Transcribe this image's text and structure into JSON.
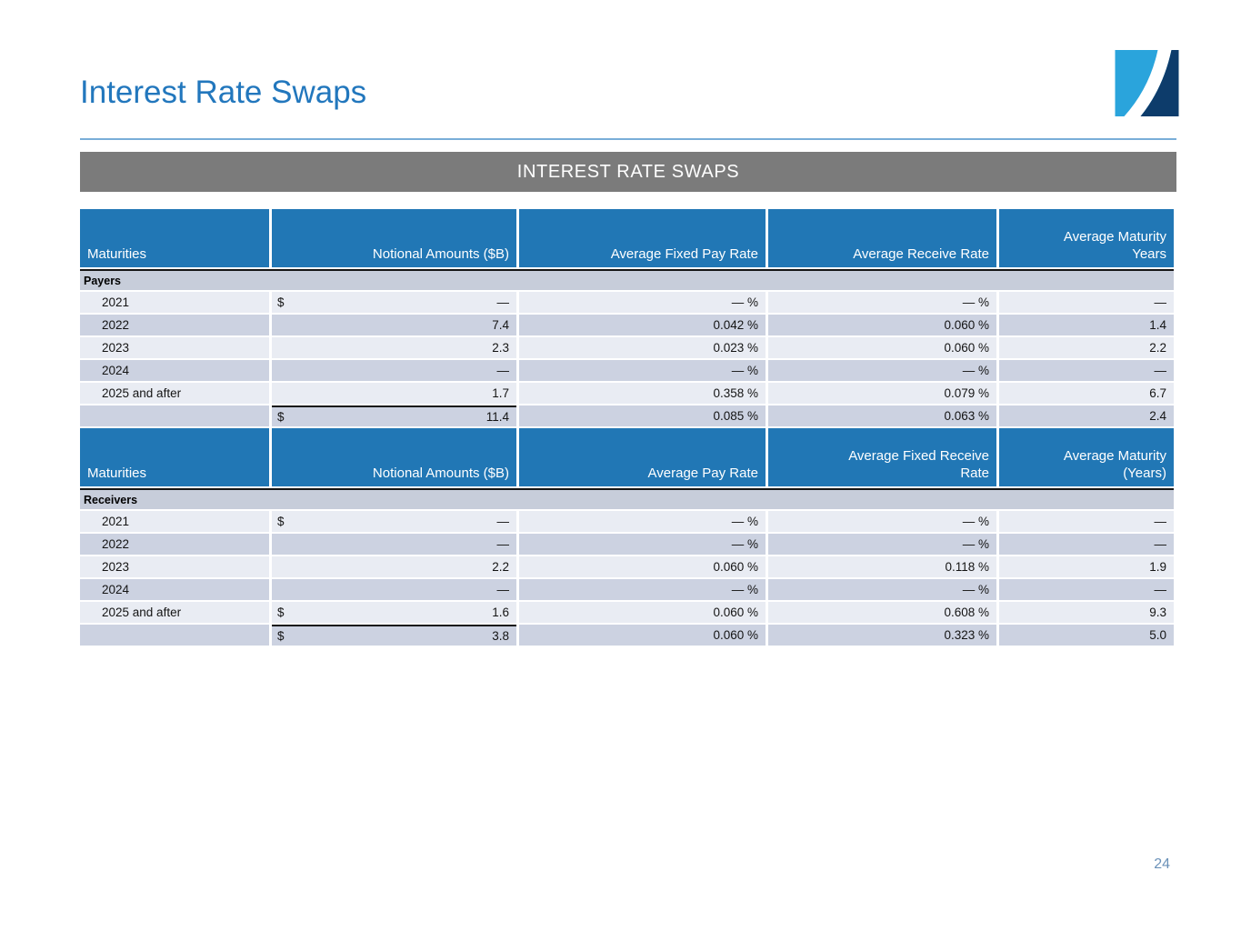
{
  "slide": {
    "title": "Interest Rate Swaps",
    "banner_title": "INTEREST RATE SWAPS",
    "page_number": "24"
  },
  "colors": {
    "title_blue": "#2277bd",
    "rule_blue": "#79aed8",
    "banner_gray": "#7b7b7b",
    "header_blue": "#2177b5",
    "row_light": "#e9ecf3",
    "row_dark": "#ccd2e1",
    "section_band": "#c7cdda",
    "logo_light_blue": "#2aa4dc",
    "logo_dark_blue": "#0d3c6b",
    "page_number_blue": "#6b92b9"
  },
  "logo": {
    "icon": "swoosh-square-logo"
  },
  "tables": [
    {
      "section_label": "Payers",
      "headers": [
        "Maturities",
        "Notional Amounts ($B)",
        "Average Fixed Pay Rate",
        "Average Receive Rate",
        "Average Maturity\nYears"
      ],
      "rows": [
        {
          "maturity": "2021",
          "notional_prefix": "$",
          "notional": "—",
          "rate_a": "— %",
          "rate_b": "— %",
          "years": "—",
          "sum_line_above": false
        },
        {
          "maturity": "2022",
          "notional_prefix": "",
          "notional": "7.4",
          "rate_a": "0.042 %",
          "rate_b": "0.060 %",
          "years": "1.4",
          "sum_line_above": false
        },
        {
          "maturity": "2023",
          "notional_prefix": "",
          "notional": "2.3",
          "rate_a": "0.023 %",
          "rate_b": "0.060 %",
          "years": "2.2",
          "sum_line_above": false
        },
        {
          "maturity": "2024",
          "notional_prefix": "",
          "notional": "—",
          "rate_a": "— %",
          "rate_b": "— %",
          "years": "—",
          "sum_line_above": false
        },
        {
          "maturity": "2025 and after",
          "notional_prefix": "",
          "notional": "1.7",
          "rate_a": "0.358 %",
          "rate_b": "0.079 %",
          "years": "6.7",
          "sum_line_above": false
        },
        {
          "maturity": "",
          "notional_prefix": "$",
          "notional": "11.4",
          "rate_a": "0.085 %",
          "rate_b": "0.063 %",
          "years": "2.4",
          "sum_line_above": true
        }
      ]
    },
    {
      "section_label": "Receivers",
      "headers": [
        "Maturities",
        "Notional Amounts ($B)",
        "Average Pay Rate",
        "Average Fixed Receive\nRate",
        "Average Maturity\n(Years)"
      ],
      "rows": [
        {
          "maturity": "2021",
          "notional_prefix": "$",
          "notional": "—",
          "rate_a": "— %",
          "rate_b": "— %",
          "years": "—",
          "sum_line_above": false
        },
        {
          "maturity": "2022",
          "notional_prefix": "",
          "notional": "—",
          "rate_a": "— %",
          "rate_b": "— %",
          "years": "—",
          "sum_line_above": false
        },
        {
          "maturity": "2023",
          "notional_prefix": "",
          "notional": "2.2",
          "rate_a": "0.060 %",
          "rate_b": "0.118 %",
          "years": "1.9",
          "sum_line_above": false
        },
        {
          "maturity": "2024",
          "notional_prefix": "",
          "notional": "—",
          "rate_a": "— %",
          "rate_b": "— %",
          "years": "—",
          "sum_line_above": false
        },
        {
          "maturity": "2025 and after",
          "notional_prefix": "$",
          "notional": "1.6",
          "rate_a": "0.060 %",
          "rate_b": "0.608 %",
          "years": "9.3",
          "sum_line_above": false
        },
        {
          "maturity": "",
          "notional_prefix": "$",
          "notional": "3.8",
          "rate_a": "0.060 %",
          "rate_b": "0.323 %",
          "years": "5.0",
          "sum_line_above": true
        }
      ]
    }
  ]
}
